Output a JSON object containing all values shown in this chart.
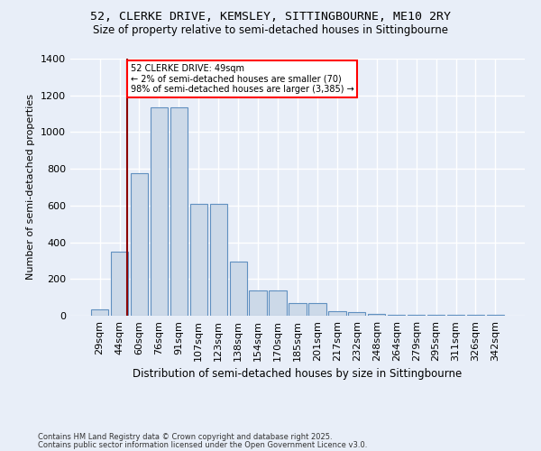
{
  "title": "52, CLERKE DRIVE, KEMSLEY, SITTINGBOURNE, ME10 2RY",
  "subtitle": "Size of property relative to semi-detached houses in Sittingbourne",
  "xlabel": "Distribution of semi-detached houses by size in Sittingbourne",
  "ylabel": "Number of semi-detached properties",
  "footer1": "Contains HM Land Registry data © Crown copyright and database right 2025.",
  "footer2": "Contains public sector information licensed under the Open Government Licence v3.0.",
  "bin_labels": [
    "29sqm",
    "44sqm",
    "60sqm",
    "76sqm",
    "91sqm",
    "107sqm",
    "123sqm",
    "138sqm",
    "154sqm",
    "170sqm",
    "185sqm",
    "201sqm",
    "217sqm",
    "232sqm",
    "248sqm",
    "264sqm",
    "279sqm",
    "295sqm",
    "311sqm",
    "326sqm",
    "342sqm"
  ],
  "bar_heights": [
    35,
    350,
    775,
    1135,
    1135,
    610,
    610,
    295,
    140,
    140,
    70,
    70,
    25,
    18,
    8,
    5,
    5,
    5,
    5,
    5,
    5
  ],
  "bar_color": "#ccd9e8",
  "bar_edge_color": "#6090c0",
  "background_color": "#e8eef8",
  "grid_color": "#ffffff",
  "red_line_x": 1.4,
  "annotation_title": "52 CLERKE DRIVE: 49sqm",
  "annotation_line1": "← 2% of semi-detached houses are smaller (70)",
  "annotation_line2": "98% of semi-detached houses are larger (3,385) →",
  "ylim": [
    0,
    1400
  ],
  "yticks": [
    0,
    200,
    400,
    600,
    800,
    1000,
    1200,
    1400
  ],
  "title_fontsize": 9.5,
  "subtitle_fontsize": 8.5,
  "ylabel_fontsize": 8,
  "xlabel_fontsize": 8.5,
  "tick_fontsize": 8,
  "footer_fontsize": 6
}
